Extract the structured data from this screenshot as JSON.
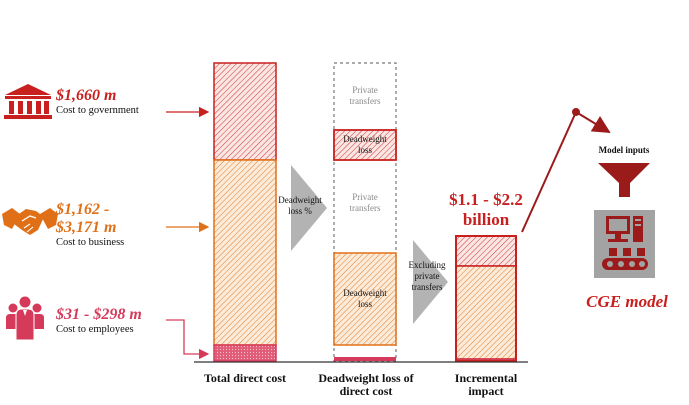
{
  "colors": {
    "red": "#c8201e",
    "orange": "#e07018",
    "pink": "#d63a5a",
    "dark_red": "#9b1b1b",
    "grey": "#a0a0a0"
  },
  "sources": [
    {
      "amount": "$1,660 m",
      "label": "Cost to government",
      "icon": "government-building-icon",
      "color": "#c8201e"
    },
    {
      "amount_line1": "$1,162 -",
      "amount_line2": "$3,171 m",
      "label": "Cost to business",
      "icon": "handshake-icon",
      "color": "#e07018"
    },
    {
      "amount": "$31 - $298 m",
      "label": "Cost to employees",
      "icon": "people-icon",
      "color": "#d63a5a"
    }
  ],
  "columns": {
    "total": {
      "label": "Total direct cost"
    },
    "deadweight": {
      "label_line1": "Deadweight loss of",
      "label_line2": "direct cost",
      "private_top_line1": "Private",
      "private_top_line2": "transfers",
      "dw_top_line1": "Deadweight",
      "dw_top_line2": "loss",
      "private_mid_line1": "Private",
      "private_mid_line2": "transfers",
      "dw_bottom_line1": "Deadweight",
      "dw_bottom_line2": "loss"
    },
    "incremental": {
      "label_line1": "Incremental",
      "label_line2": "impact"
    }
  },
  "arrows": {
    "deadweight_line1": "Deadweight",
    "deadweight_line2": "loss %",
    "excluding_line1": "Excluding",
    "excluding_line2": "private",
    "excluding_line3": "transfers"
  },
  "result": {
    "line1": "$1.1 - $2.2",
    "line2": "billion"
  },
  "model": {
    "inputs_label": "Model inputs",
    "funnel_icon": "funnel-icon",
    "computer_icon": "computer-factory-icon",
    "title": "CGE model"
  }
}
